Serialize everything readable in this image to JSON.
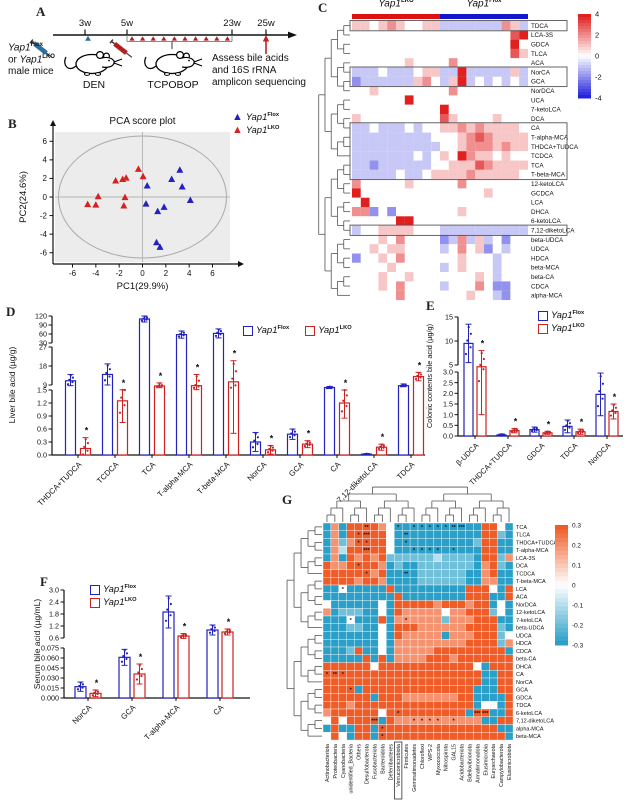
{
  "panels": {
    "A": {
      "label": "A",
      "timeline_ticks": [
        "3w",
        "5w",
        "23w",
        "25w"
      ],
      "or_text": "or ",
      "male_mice": "male mice",
      "den": "DEN",
      "tcpobop": "TCPOBOP",
      "assess_lines": [
        "Assess bile acids",
        "and 16S rRNA",
        "amplicon sequencing"
      ]
    },
    "B": {
      "label": "B"
    },
    "C": {
      "label": "C"
    },
    "D": {
      "label": "D"
    },
    "E": {
      "label": "E"
    },
    "F": {
      "label": "F"
    },
    "G": {
      "label": "G"
    }
  },
  "groups": {
    "gene": "Yap1",
    "flox_sup": "Flox",
    "lko_sup": "LKO",
    "flox_color": "#2323bb",
    "lko_color": "#cc2222"
  },
  "chart_data": [
    {
      "id": "B",
      "type": "scatter",
      "title": "PCA score plot",
      "xlabel": "PC1(29.9%)",
      "ylabel": "PC2(24.6%)",
      "xlim": [
        -7.5,
        7.5
      ],
      "ylim": [
        -7,
        7
      ],
      "xticks": [
        -6,
        -4,
        -2,
        0,
        2,
        4,
        6
      ],
      "yticks": [
        -6,
        -4,
        -2,
        0,
        2,
        4,
        6
      ],
      "ellipse": true,
      "background": "#ececec",
      "series": [
        {
          "name": "Yap1 Flox",
          "color": "#2222c0",
          "points": [
            [
              0.4,
              1.2
            ],
            [
              0.3,
              -0.75
            ],
            [
              1.3,
              -1.55
            ],
            [
              1.85,
              -1.1
            ],
            [
              2.5,
              1.9
            ],
            [
              3.2,
              2.9
            ],
            [
              3.4,
              1.1
            ],
            [
              4.1,
              -0.35
            ],
            [
              1.2,
              -4.9
            ],
            [
              1.5,
              -5.4
            ]
          ]
        },
        {
          "name": "Yap1 LKO",
          "color": "#d42222",
          "points": [
            [
              -4.7,
              -0.8
            ],
            [
              -4.0,
              -0.85
            ],
            [
              -3.8,
              0.05
            ],
            [
              -2.3,
              1.75
            ],
            [
              -1.7,
              1.9
            ],
            [
              -1.4,
              2.05
            ],
            [
              -1.5,
              -0.05
            ],
            [
              -1.6,
              -0.95
            ],
            [
              -0.35,
              3.0
            ],
            [
              0.05,
              2.2
            ]
          ]
        }
      ]
    },
    {
      "id": "C",
      "type": "heatmap",
      "digit_zero": 4,
      "digit_range": 4,
      "colorscale": {
        "min": -4,
        "max": 4,
        "ticks": [
          "4",
          "2",
          "0",
          "-2",
          "-4"
        ],
        "pos_color": "#e01f1f",
        "neg_color": "#2424dd"
      },
      "col_groups": [
        {
          "sup": "LKO",
          "color": "#dd1111",
          "n": 10
        },
        {
          "sup": "Flox",
          "color": "#1515cc",
          "n": 10
        }
      ],
      "rows": [
        "TDCA",
        "LCA-3S",
        "GDCA",
        "TLCA",
        "ACA",
        "NorCA",
        "GCA",
        "NorDCA",
        "UCA",
        "7-ketoLCA",
        "DCA",
        "CA",
        "T-alpha-MCA",
        "THDCA+TUDCA",
        "TCDCA",
        "TCA",
        "T-beta-MCA",
        "12-ketoLCA",
        "GCDCA",
        "LCA",
        "DHCA",
        "6-ketoLCA",
        "7,12-diketoLCA",
        "beta-UDCA",
        "UDCA",
        "HDCA",
        "beta-MCA",
        "beta-CA",
        "CDCA",
        "alpha-MCA"
      ],
      "cells": [
        "55456544553333333653",
        "44444444444444444478",
        "44444444444444444484",
        "44444444444444444475",
        "44444454444644444444",
        "33343334553383333353",
        "23333335643583434343",
        "44544444444644444444",
        "44444484444444444444",
        "44444444448444444444",
        "54444444447544445444",
        "33433343445565655554",
        "33333333344456765555",
        "33333333334456665655",
        "33333334345486554544",
        "33233333344555765555",
        "33333433455556555554",
        "64444454444464444444",
        "84444444444444454444",
        "48444444444444444444",
        "66242444444454444444",
        "44444884444444444444",
        "34455554443333333333",
        "44454644442363534244",
        "44545544443464524344",
        "24454644444454443444",
        "44445444443454443444",
        "44454454444444543444",
        "44454644443444642244",
        "44444644444445443244"
      ],
      "boxed_row_ranges": [
        [
          0,
          0
        ],
        [
          5,
          6
        ],
        [
          11,
          16
        ],
        [
          22,
          22
        ]
      ]
    },
    {
      "id": "D",
      "type": "bar",
      "ylabel": "Liver bile acid (µg/g)",
      "categories": [
        "THDCA+TUDCA",
        "TCDCA",
        "TCA",
        "T-alpha-MCA",
        "T-beta-MCA",
        "NorCA",
        "GCA",
        "CA",
        "7,12-diketoLCA",
        "TDCA"
      ],
      "segments": [
        {
          "range": [
            0,
            1.5
          ],
          "ticks": [
            "0.0",
            "0.3",
            "0.6",
            "0.9",
            "1.2",
            "1.5"
          ]
        },
        {
          "range": [
            9,
            27
          ],
          "ticks": [
            "9",
            "18",
            "27"
          ]
        },
        {
          "range": [
            30,
            120
          ],
          "ticks": [
            "30",
            "60",
            "90",
            "120"
          ]
        }
      ],
      "series": [
        {
          "name": "Yap1 Flox",
          "color": "#2323bb",
          "values": [
            11,
            14,
            110,
            58,
            62,
            0.3,
            0.48,
            5.2,
            0.02,
            8
          ],
          "errors": [
            3,
            5,
            10,
            12,
            15,
            0.22,
            0.12,
            1.6,
            0.01,
            1.5
          ]
        },
        {
          "name": "Yap1 LKO",
          "color": "#cc2222",
          "values": [
            0.15,
            1.25,
            7.5,
            8,
            10.5,
            0.12,
            0.25,
            1.2,
            0.18,
            13
          ],
          "errors": [
            0.25,
            0.5,
            2.5,
            6,
            10,
            0.1,
            0.08,
            0.35,
            0.07,
            2
          ],
          "stars": [
            "*",
            "*",
            "*",
            "*",
            "*",
            "*",
            "*",
            "*",
            "*",
            "*"
          ]
        }
      ]
    },
    {
      "id": "E",
      "type": "bar",
      "ylabel": "Colonic contents bile acid (µg/g)",
      "categories": [
        "β-UDCA",
        "THDCA+TUDCA",
        "GDCA",
        "TDCA",
        "NorDCA"
      ],
      "segments": [
        {
          "range": [
            0,
            3
          ],
          "ticks": [
            "0.0",
            "0.5",
            "1.0",
            "1.5",
            "2.0",
            "2.5",
            "3.0"
          ]
        },
        {
          "range": [
            5,
            15
          ],
          "ticks": [
            "5",
            "10",
            "15"
          ]
        }
      ],
      "series": [
        {
          "name": "Yap1 Flox",
          "color": "#2323bb",
          "values": [
            9.5,
            0.05,
            0.3,
            0.45,
            1.95
          ],
          "errors": [
            4,
            0.04,
            0.12,
            0.3,
            1.0
          ]
        },
        {
          "name": "Yap1 LKO",
          "color": "#cc2222",
          "values": [
            4.5,
            0.25,
            0.15,
            0.2,
            1.15
          ],
          "errors": [
            3.5,
            0.1,
            0.07,
            0.12,
            0.35
          ],
          "stars": [
            "*",
            "*",
            "*",
            "*",
            "*"
          ]
        }
      ]
    },
    {
      "id": "F",
      "type": "bar",
      "ylabel": "Serum bile acid (µg/mL)",
      "categories": [
        "NorCA",
        "GCA",
        "T-alpha-MCA",
        "CA"
      ],
      "segments": [
        {
          "range": [
            0,
            0.075
          ],
          "ticks": [
            "0.000",
            "0.015",
            "0.030",
            "0.045",
            "0.060",
            "0.075"
          ]
        },
        {
          "range": [
            0.6,
            3.0
          ],
          "ticks": [
            "0.6",
            "1.2",
            "1.8",
            "2.4",
            "3.0"
          ]
        }
      ],
      "series": [
        {
          "name": "Yap1 Flox",
          "color": "#2323bb",
          "values": [
            0.017,
            0.061,
            1.9,
            1.0
          ],
          "errors": [
            0.007,
            0.012,
            0.8,
            0.25
          ]
        },
        {
          "name": "Yap1 LKO",
          "color": "#cc2222",
          "values": [
            0.007,
            0.036,
            0.7,
            0.9
          ],
          "errors": [
            0.005,
            0.015,
            0.12,
            0.15
          ],
          "stars": [
            "*",
            "*",
            "*",
            "*"
          ]
        }
      ]
    },
    {
      "id": "G",
      "type": "heatmap",
      "digit_zero": 3,
      "digit_range": 3,
      "colorscale": {
        "min": -0.3,
        "max": 0.3,
        "ticks": [
          "0.3",
          "0.2",
          "0.1",
          "0",
          "-0.1",
          "-0.2",
          "-0.3"
        ],
        "pos_color": "#f05c28",
        "neg_color": "#2aa0c8"
      },
      "rows": [
        "TCA",
        "TLCA",
        "THDCA+TUDCA",
        "T-alpha-MCA",
        "LCA-3S",
        "DCA",
        "TCDCA",
        "T-beta-MCA",
        "LCA",
        "ACA",
        "NorDCA",
        "12-ketoLCA",
        "7-ketoLCA",
        "beta-UDCA",
        "UDCA",
        "HDCA",
        "CDCA",
        "beta-CA",
        "DHCA",
        "CA",
        "NorCA",
        "GCA",
        "GDCA",
        "TDCA",
        "6-ketoLCA",
        "7,12-diketoLCA",
        "alpha-MCA",
        "beta-MCA"
      ],
      "cols": [
        "Actinobacteriota",
        "Proteobacteria",
        "Cyanobacteria",
        "unidentified_Bacteria",
        "Others",
        "Desulfobacterota",
        "Fusobacteriota",
        "Bacteroidota",
        "Deferribacteres",
        "Verrucomicrobiota",
        "Firmicutes",
        "Gemmatimonadetes",
        "Chloroflexi",
        "WPS-2",
        "Myxococcota",
        "Nitrospirota",
        "GAL15",
        "Acidobacteriota",
        "Bdellovibrionota",
        "Armatimonadota",
        "Elusimicrobia",
        "Euryarchaeota",
        "Campylobacterota",
        "Elusimicrobiota"
      ],
      "cells": [
        "050666653000000000006630",
        "050666663000000000006610",
        "051566663000000000016600",
        "052666663000000000006600",
        "050656561111112111106615",
        "655666650100111111105610",
        "666666560000111111005600",
        "666656650000111111005500",
        "003000006000000000666306",
        "000000000600000000666006",
        "300000030666665666566030",
        "501110030655555355666130",
        "000300060555555155566600",
        "000110030666555555666610",
        "000000030655555055566613",
        "000000030555555555666615",
        "000160030555556666666660",
        "000006060555566656666666",
        "666666366666666666630666",
        "666666666666666666660066",
        "666666666666666666660066",
        "666606666666666666600066",
        "666666066655555556600006",
        "666566666666666666603306",
        "566666636666666666066006",
        "363666606555555555550066",
        "060066066666666666666600",
        "363066066666666666666660"
      ],
      "boxed_col": "Verrucomicrobiota",
      "stars": [
        [
          0,
          5,
          "**"
        ],
        [
          0,
          9,
          "*"
        ],
        [
          0,
          11,
          "*"
        ],
        [
          0,
          12,
          "*"
        ],
        [
          0,
          13,
          "*"
        ],
        [
          0,
          14,
          "*"
        ],
        [
          0,
          15,
          "*"
        ],
        [
          0,
          16,
          "**"
        ],
        [
          0,
          17,
          "***"
        ],
        [
          1,
          4,
          "*"
        ],
        [
          1,
          5,
          "***"
        ],
        [
          1,
          10,
          "**"
        ],
        [
          2,
          4,
          "*"
        ],
        [
          2,
          5,
          "*"
        ],
        [
          2,
          10,
          "*"
        ],
        [
          3,
          5,
          "***"
        ],
        [
          3,
          11,
          "*"
        ],
        [
          3,
          12,
          "*"
        ],
        [
          3,
          13,
          "*"
        ],
        [
          3,
          14,
          "*"
        ],
        [
          3,
          16,
          "*"
        ],
        [
          5,
          4,
          "*"
        ],
        [
          6,
          5,
          "*"
        ],
        [
          6,
          10,
          "**"
        ],
        [
          8,
          2,
          "*"
        ],
        [
          12,
          3,
          "*"
        ],
        [
          12,
          10,
          "*"
        ],
        [
          19,
          0,
          "*"
        ],
        [
          19,
          1,
          "**"
        ],
        [
          19,
          2,
          "*"
        ],
        [
          21,
          3,
          "*"
        ],
        [
          24,
          9,
          "*"
        ],
        [
          24,
          19,
          "***"
        ],
        [
          24,
          20,
          "***"
        ],
        [
          25,
          6,
          "***"
        ],
        [
          25,
          11,
          "*"
        ],
        [
          25,
          12,
          "*"
        ],
        [
          25,
          13,
          "*"
        ],
        [
          25,
          14,
          "*"
        ],
        [
          25,
          16,
          "*"
        ],
        [
          26,
          7,
          "*"
        ],
        [
          27,
          7,
          "*"
        ]
      ]
    }
  ]
}
